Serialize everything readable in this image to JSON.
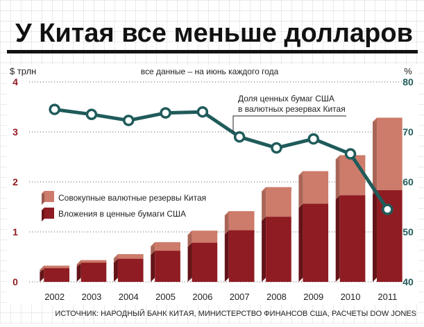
{
  "chart_data": {
    "type": "bar",
    "title": "У Китая все меньше долларов",
    "subtitle": "все данные – на июнь каждого года",
    "ylabel_left": "$ трлн",
    "ylabel_right": "%",
    "source": "ИСТОЧНИК: НАРОДНЫЙ БАНК КИТАЯ, МИНИСТЕРСТВО ФИНАНСОВ США, РАСЧЕТЫ DOW JONES",
    "categories": [
      "2002",
      "2003",
      "2004",
      "2005",
      "2006",
      "2007",
      "2008",
      "2009",
      "2010",
      "2011"
    ],
    "yticks_left": [
      "0",
      "1",
      "2",
      "3",
      "4"
    ],
    "yticks_right": [
      "40",
      "50",
      "60",
      "70",
      "80"
    ],
    "ylim_left": [
      0,
      4
    ],
    "ylim_right": [
      40,
      80
    ],
    "series": [
      {
        "name": "Совокупные валютные резервы Китая",
        "axis": "left",
        "color": "#cd7b6a",
        "values": [
          0.24,
          0.35,
          0.47,
          0.71,
          0.94,
          1.33,
          1.81,
          2.13,
          2.45,
          3.2
        ]
      },
      {
        "name": "Вложения в ценные бумаги США",
        "axis": "left",
        "color": "#8f1c22",
        "values": [
          0.19,
          0.3,
          0.38,
          0.54,
          0.7,
          0.95,
          1.22,
          1.48,
          1.65,
          1.75
        ]
      },
      {
        "name": "Доля ценных бумаг США в валютных резервах Китая",
        "axis": "right",
        "type": "line",
        "color": "#1f5b5a",
        "values": [
          74.5,
          73.5,
          72.3,
          73.8,
          74.0,
          69.0,
          66.8,
          68.6,
          65.6,
          54.5
        ]
      }
    ],
    "line_annotation": [
      "Доля ценных бумаг США",
      "в валютных резервах Китая"
    ],
    "legend_position": "middle-left",
    "grid": true
  }
}
